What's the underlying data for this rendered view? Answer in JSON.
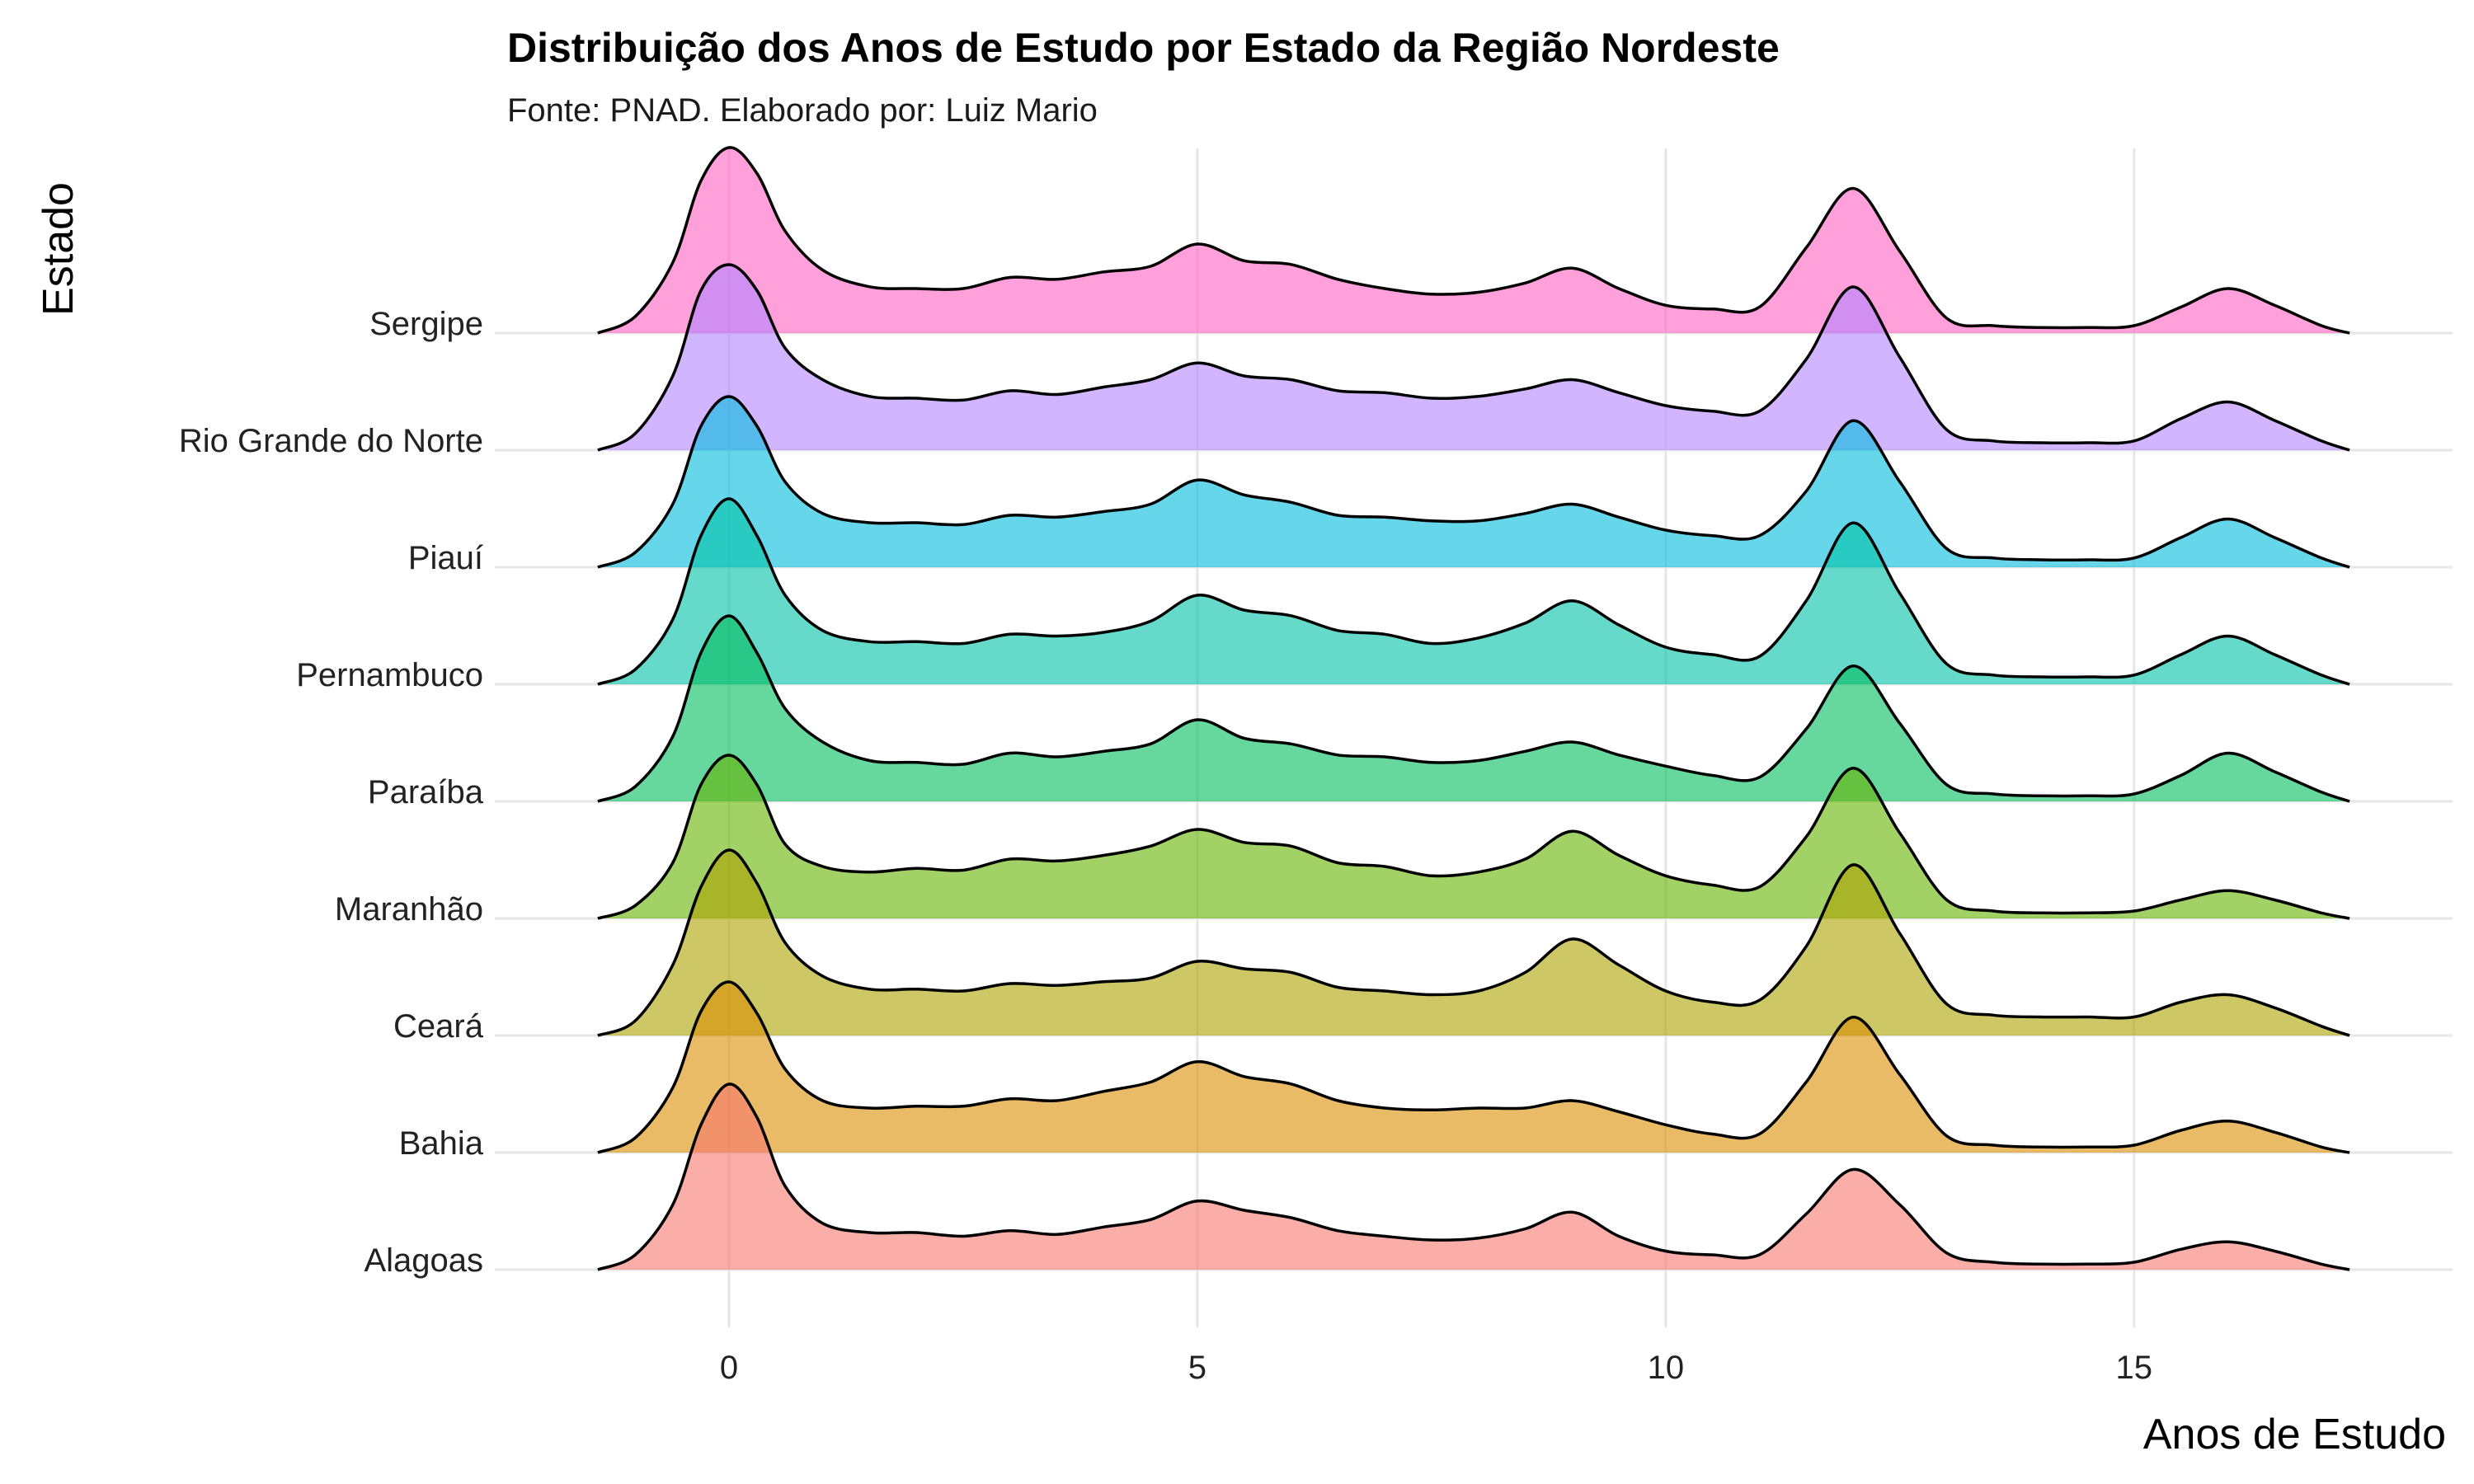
{
  "chart_data": {
    "type": "ridgeline",
    "title": "Distribuição dos Anos de Estudo por Estado da Região Nordeste",
    "subtitle": "Fonte: PNAD. Elaborado por: Luiz Mario",
    "xlabel": "Anos de Estudo",
    "ylabel": "Estado",
    "x_ticks": [
      0,
      5,
      10,
      15
    ],
    "xlim": [
      -2.5,
      18.4
    ],
    "density_ylim": [
      0,
      1
    ],
    "grid": true,
    "legend": "none",
    "x": [
      -1.4,
      -1.0,
      -0.6,
      -0.3,
      0.0,
      0.3,
      0.6,
      1.0,
      1.5,
      2.0,
      2.5,
      3.0,
      3.5,
      4.0,
      4.5,
      5.0,
      5.5,
      6.0,
      6.5,
      7.0,
      7.5,
      8.0,
      8.5,
      9.0,
      9.5,
      10.0,
      10.5,
      11.0,
      11.5,
      12.0,
      12.5,
      13.0,
      13.5,
      14.0,
      14.5,
      15.0,
      15.5,
      16.0,
      16.5,
      17.0,
      17.3
    ],
    "series": [
      {
        "name": "Alagoas",
        "color": "#F8766D",
        "values": [
          0.0,
          0.08,
          0.35,
          0.78,
          1.0,
          0.82,
          0.45,
          0.25,
          0.2,
          0.2,
          0.18,
          0.21,
          0.19,
          0.23,
          0.27,
          0.37,
          0.32,
          0.28,
          0.21,
          0.18,
          0.16,
          0.17,
          0.22,
          0.31,
          0.18,
          0.1,
          0.08,
          0.08,
          0.3,
          0.54,
          0.35,
          0.09,
          0.04,
          0.03,
          0.03,
          0.04,
          0.11,
          0.15,
          0.1,
          0.03,
          0.0
        ]
      },
      {
        "name": "Bahia",
        "color": "#DB8E00",
        "values": [
          0.0,
          0.08,
          0.35,
          0.76,
          0.92,
          0.75,
          0.45,
          0.28,
          0.24,
          0.25,
          0.25,
          0.29,
          0.28,
          0.33,
          0.38,
          0.49,
          0.41,
          0.37,
          0.28,
          0.24,
          0.23,
          0.24,
          0.24,
          0.28,
          0.22,
          0.15,
          0.1,
          0.1,
          0.38,
          0.73,
          0.42,
          0.09,
          0.04,
          0.03,
          0.03,
          0.04,
          0.12,
          0.17,
          0.11,
          0.03,
          0.0
        ]
      },
      {
        "name": "Ceará",
        "color": "#AEA200",
        "values": [
          0.0,
          0.08,
          0.38,
          0.8,
          1.0,
          0.82,
          0.5,
          0.32,
          0.25,
          0.25,
          0.24,
          0.28,
          0.27,
          0.29,
          0.31,
          0.4,
          0.36,
          0.34,
          0.26,
          0.24,
          0.22,
          0.24,
          0.34,
          0.52,
          0.38,
          0.24,
          0.18,
          0.19,
          0.48,
          0.92,
          0.55,
          0.17,
          0.11,
          0.1,
          0.1,
          0.1,
          0.18,
          0.22,
          0.15,
          0.05,
          0.0
        ]
      },
      {
        "name": "Maranhão",
        "color": "#64B200",
        "values": [
          0.0,
          0.07,
          0.3,
          0.72,
          0.88,
          0.72,
          0.4,
          0.28,
          0.25,
          0.27,
          0.26,
          0.32,
          0.31,
          0.34,
          0.39,
          0.48,
          0.41,
          0.39,
          0.3,
          0.28,
          0.23,
          0.25,
          0.32,
          0.47,
          0.34,
          0.23,
          0.18,
          0.17,
          0.44,
          0.81,
          0.46,
          0.1,
          0.04,
          0.03,
          0.03,
          0.04,
          0.1,
          0.15,
          0.1,
          0.03,
          0.0
        ]
      },
      {
        "name": "Paraíba",
        "color": "#00BD5C",
        "values": [
          0.0,
          0.08,
          0.35,
          0.8,
          1.0,
          0.8,
          0.5,
          0.32,
          0.22,
          0.21,
          0.2,
          0.26,
          0.24,
          0.27,
          0.31,
          0.44,
          0.34,
          0.31,
          0.25,
          0.24,
          0.21,
          0.22,
          0.27,
          0.32,
          0.25,
          0.19,
          0.14,
          0.13,
          0.39,
          0.73,
          0.42,
          0.09,
          0.04,
          0.03,
          0.03,
          0.04,
          0.14,
          0.26,
          0.16,
          0.05,
          0.0
        ]
      },
      {
        "name": "Pernambuco",
        "color": "#00C1A7",
        "values": [
          0.0,
          0.08,
          0.35,
          0.8,
          1.0,
          0.8,
          0.48,
          0.29,
          0.23,
          0.23,
          0.22,
          0.27,
          0.26,
          0.28,
          0.34,
          0.48,
          0.4,
          0.37,
          0.29,
          0.27,
          0.22,
          0.25,
          0.33,
          0.45,
          0.32,
          0.2,
          0.16,
          0.15,
          0.45,
          0.87,
          0.49,
          0.11,
          0.05,
          0.04,
          0.04,
          0.05,
          0.16,
          0.26,
          0.16,
          0.05,
          0.0
        ]
      },
      {
        "name": "Piauí",
        "color": "#00BADE",
        "values": [
          0.0,
          0.08,
          0.34,
          0.76,
          0.92,
          0.76,
          0.46,
          0.29,
          0.24,
          0.24,
          0.23,
          0.28,
          0.27,
          0.3,
          0.34,
          0.47,
          0.39,
          0.35,
          0.28,
          0.27,
          0.25,
          0.25,
          0.29,
          0.34,
          0.27,
          0.2,
          0.17,
          0.17,
          0.41,
          0.79,
          0.46,
          0.1,
          0.05,
          0.04,
          0.04,
          0.05,
          0.16,
          0.26,
          0.16,
          0.05,
          0.0
        ]
      },
      {
        "name": "Rio Grande do Norte",
        "color": "#B385FF",
        "values": [
          0.0,
          0.09,
          0.4,
          0.86,
          1.0,
          0.86,
          0.55,
          0.38,
          0.29,
          0.28,
          0.27,
          0.32,
          0.3,
          0.34,
          0.38,
          0.47,
          0.4,
          0.38,
          0.32,
          0.31,
          0.28,
          0.29,
          0.33,
          0.38,
          0.31,
          0.24,
          0.21,
          0.21,
          0.49,
          0.88,
          0.5,
          0.11,
          0.05,
          0.04,
          0.04,
          0.05,
          0.17,
          0.26,
          0.16,
          0.05,
          0.0
        ]
      },
      {
        "name": "Sergipe",
        "color": "#FF61C3",
        "values": [
          0.0,
          0.09,
          0.38,
          0.82,
          1.0,
          0.86,
          0.55,
          0.34,
          0.25,
          0.24,
          0.24,
          0.3,
          0.29,
          0.33,
          0.36,
          0.48,
          0.39,
          0.37,
          0.29,
          0.24,
          0.21,
          0.22,
          0.27,
          0.35,
          0.24,
          0.15,
          0.13,
          0.14,
          0.46,
          0.78,
          0.44,
          0.08,
          0.04,
          0.03,
          0.03,
          0.04,
          0.14,
          0.24,
          0.15,
          0.04,
          0.0
        ]
      }
    ]
  }
}
